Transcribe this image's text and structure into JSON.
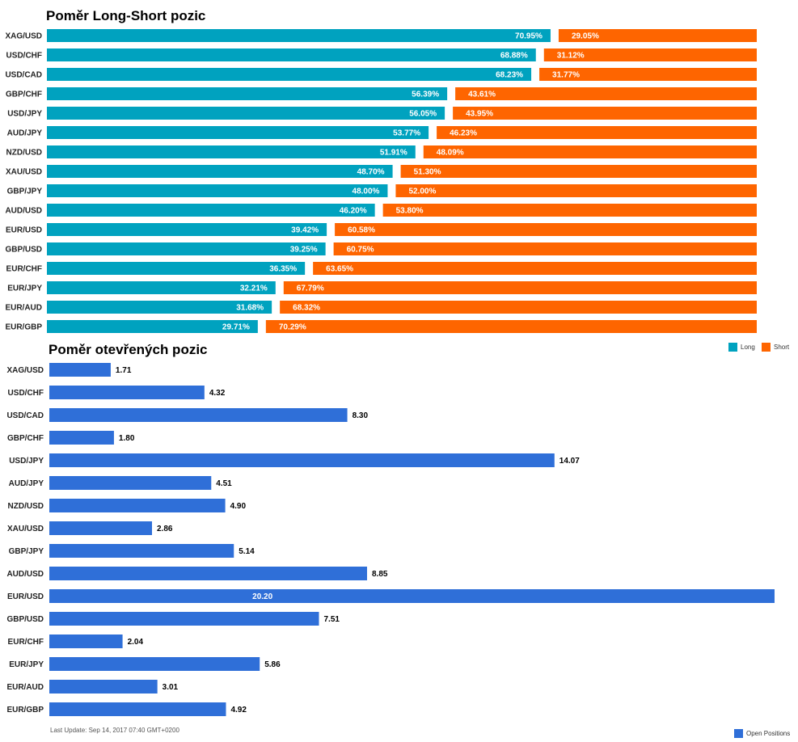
{
  "colors": {
    "long": "#00a2bf",
    "short": "#fe6500",
    "open": "#2f6fd8"
  },
  "footer": "Last Update: Sep 14, 2017 07:40 GMT+0200",
  "chart_data": [
    {
      "type": "bar",
      "orientation": "horizontal",
      "stacked": true,
      "title": "Poměr Long-Short pozic",
      "categories": [
        "XAG/USD",
        "USD/CHF",
        "USD/CAD",
        "GBP/CHF",
        "USD/JPY",
        "AUD/JPY",
        "NZD/USD",
        "XAU/USD",
        "GBP/JPY",
        "AUD/USD",
        "EUR/USD",
        "GBP/USD",
        "EUR/CHF",
        "EUR/JPY",
        "EUR/AUD",
        "EUR/GBP"
      ],
      "series": [
        {
          "name": "Long",
          "values": [
            70.95,
            68.88,
            68.23,
            56.39,
            56.05,
            53.77,
            51.91,
            48.7,
            48.0,
            46.2,
            39.42,
            39.25,
            36.35,
            32.21,
            31.68,
            29.71
          ],
          "labels": [
            "70.95%",
            "68.88%",
            "68.23%",
            "56.39%",
            "56.05%",
            "53.77%",
            "51.91%",
            "48.70%",
            "48.00%",
            "46.20%",
            "39.42%",
            "39.25%",
            "36.35%",
            "32.21%",
            "31.68%",
            "29.71%"
          ]
        },
        {
          "name": "Short",
          "values": [
            29.05,
            31.12,
            31.77,
            43.61,
            43.95,
            46.23,
            48.09,
            51.3,
            52.0,
            53.8,
            60.58,
            60.75,
            63.65,
            67.79,
            68.32,
            70.29
          ],
          "labels": [
            "29.05%",
            "31.12%",
            "31.77%",
            "43.61%",
            "43.95%",
            "46.23%",
            "48.09%",
            "51.30%",
            "52.00%",
            "53.80%",
            "60.58%",
            "60.75%",
            "63.65%",
            "67.79%",
            "68.32%",
            "70.29%"
          ]
        }
      ],
      "legend": "top-right"
    },
    {
      "type": "bar",
      "orientation": "horizontal",
      "title": "Poměr otevřených pozic",
      "categories": [
        "XAG/USD",
        "USD/CHF",
        "USD/CAD",
        "GBP/CHF",
        "USD/JPY",
        "AUD/JPY",
        "NZD/USD",
        "XAU/USD",
        "GBP/JPY",
        "AUD/USD",
        "EUR/USD",
        "GBP/USD",
        "EUR/CHF",
        "EUR/JPY",
        "EUR/AUD",
        "EUR/GBP"
      ],
      "series": [
        {
          "name": "Open Positions",
          "values": [
            1.71,
            4.32,
            8.3,
            1.8,
            14.07,
            4.51,
            4.9,
            2.86,
            5.14,
            8.85,
            20.2,
            7.51,
            2.04,
            5.86,
            3.01,
            4.92
          ],
          "labels": [
            "1.71",
            "4.32",
            "8.30",
            "1.80",
            "14.07",
            "4.51",
            "4.90",
            "2.86",
            "5.14",
            "8.85",
            "20.20",
            "7.51",
            "2.04",
            "5.86",
            "3.01",
            "4.92"
          ]
        }
      ],
      "legend": "bottom-right"
    }
  ]
}
